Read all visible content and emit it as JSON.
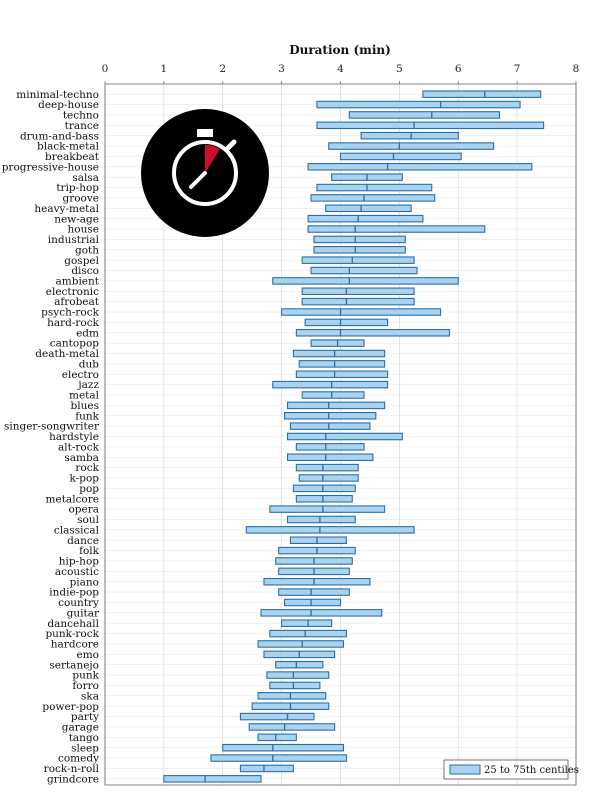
{
  "chart_data": {
    "type": "boxplot",
    "orientation": "horizontal",
    "xlabel": "Duration (min)",
    "xlim": [
      0,
      8
    ],
    "xticks": [
      0,
      1,
      2,
      3,
      4,
      5,
      6,
      7,
      8
    ],
    "grid": true,
    "legend": {
      "label": "25 to 75th centiles",
      "placement": "bottom-right"
    },
    "colors": {
      "fill": "#a9d3ee",
      "stroke": "#2a6fa8",
      "icon_bg": "#000000",
      "icon_accent": "#c8102e"
    },
    "icon": "stopwatch-icon",
    "rows": [
      {
        "genre": "minimal-techno",
        "q1": 5.4,
        "median": 6.45,
        "q3": 7.4
      },
      {
        "genre": "deep-house",
        "q1": 3.6,
        "median": 5.7,
        "q3": 7.05
      },
      {
        "genre": "techno",
        "q1": 4.15,
        "median": 5.55,
        "q3": 6.7
      },
      {
        "genre": "trance",
        "q1": 3.6,
        "median": 5.25,
        "q3": 7.45
      },
      {
        "genre": "drum-and-bass",
        "q1": 4.35,
        "median": 5.2,
        "q3": 6.0
      },
      {
        "genre": "black-metal",
        "q1": 3.8,
        "median": 5.0,
        "q3": 6.6
      },
      {
        "genre": "breakbeat",
        "q1": 4.0,
        "median": 4.9,
        "q3": 6.05
      },
      {
        "genre": "progressive-house",
        "q1": 3.45,
        "median": 4.8,
        "q3": 7.25
      },
      {
        "genre": "salsa",
        "q1": 3.85,
        "median": 4.45,
        "q3": 5.05
      },
      {
        "genre": "trip-hop",
        "q1": 3.6,
        "median": 4.45,
        "q3": 5.55
      },
      {
        "genre": "groove",
        "q1": 3.5,
        "median": 4.4,
        "q3": 5.6
      },
      {
        "genre": "heavy-metal",
        "q1": 3.75,
        "median": 4.35,
        "q3": 5.2
      },
      {
        "genre": "new-age",
        "q1": 3.45,
        "median": 4.3,
        "q3": 5.4
      },
      {
        "genre": "house",
        "q1": 3.45,
        "median": 4.25,
        "q3": 6.45
      },
      {
        "genre": "industrial",
        "q1": 3.55,
        "median": 4.25,
        "q3": 5.1
      },
      {
        "genre": "goth",
        "q1": 3.55,
        "median": 4.25,
        "q3": 5.1
      },
      {
        "genre": "gospel",
        "q1": 3.35,
        "median": 4.2,
        "q3": 5.25
      },
      {
        "genre": "disco",
        "q1": 3.5,
        "median": 4.15,
        "q3": 5.3
      },
      {
        "genre": "ambient",
        "q1": 2.85,
        "median": 4.15,
        "q3": 6.0
      },
      {
        "genre": "electronic",
        "q1": 3.35,
        "median": 4.1,
        "q3": 5.25
      },
      {
        "genre": "afrobeat",
        "q1": 3.35,
        "median": 4.1,
        "q3": 5.25
      },
      {
        "genre": "psych-rock",
        "q1": 3.0,
        "median": 4.0,
        "q3": 5.7
      },
      {
        "genre": "hard-rock",
        "q1": 3.4,
        "median": 4.0,
        "q3": 4.8
      },
      {
        "genre": "edm",
        "q1": 3.25,
        "median": 4.0,
        "q3": 5.85
      },
      {
        "genre": "cantopop",
        "q1": 3.5,
        "median": 3.95,
        "q3": 4.4
      },
      {
        "genre": "death-metal",
        "q1": 3.2,
        "median": 3.9,
        "q3": 4.75
      },
      {
        "genre": "dub",
        "q1": 3.3,
        "median": 3.9,
        "q3": 4.75
      },
      {
        "genre": "electro",
        "q1": 3.25,
        "median": 3.9,
        "q3": 4.8
      },
      {
        "genre": "jazz",
        "q1": 2.85,
        "median": 3.85,
        "q3": 4.8
      },
      {
        "genre": "metal",
        "q1": 3.35,
        "median": 3.85,
        "q3": 4.4
      },
      {
        "genre": "blues",
        "q1": 3.1,
        "median": 3.8,
        "q3": 4.75
      },
      {
        "genre": "funk",
        "q1": 3.05,
        "median": 3.8,
        "q3": 4.6
      },
      {
        "genre": "singer-songwriter",
        "q1": 3.15,
        "median": 3.8,
        "q3": 4.5
      },
      {
        "genre": "hardstyle",
        "q1": 3.1,
        "median": 3.75,
        "q3": 5.05
      },
      {
        "genre": "alt-rock",
        "q1": 3.25,
        "median": 3.75,
        "q3": 4.4
      },
      {
        "genre": "samba",
        "q1": 3.1,
        "median": 3.75,
        "q3": 4.55
      },
      {
        "genre": "rock",
        "q1": 3.25,
        "median": 3.7,
        "q3": 4.3
      },
      {
        "genre": "k-pop",
        "q1": 3.3,
        "median": 3.7,
        "q3": 4.3
      },
      {
        "genre": "pop",
        "q1": 3.2,
        "median": 3.7,
        "q3": 4.25
      },
      {
        "genre": "metalcore",
        "q1": 3.25,
        "median": 3.7,
        "q3": 4.2
      },
      {
        "genre": "opera",
        "q1": 2.8,
        "median": 3.7,
        "q3": 4.75
      },
      {
        "genre": "soul",
        "q1": 3.1,
        "median": 3.65,
        "q3": 4.25
      },
      {
        "genre": "classical",
        "q1": 2.4,
        "median": 3.65,
        "q3": 5.25
      },
      {
        "genre": "dance",
        "q1": 3.15,
        "median": 3.6,
        "q3": 4.1
      },
      {
        "genre": "folk",
        "q1": 2.95,
        "median": 3.6,
        "q3": 4.25
      },
      {
        "genre": "hip-hop",
        "q1": 2.9,
        "median": 3.55,
        "q3": 4.2
      },
      {
        "genre": "acoustic",
        "q1": 2.95,
        "median": 3.55,
        "q3": 4.15
      },
      {
        "genre": "piano",
        "q1": 2.7,
        "median": 3.55,
        "q3": 4.5
      },
      {
        "genre": "indie-pop",
        "q1": 2.95,
        "median": 3.5,
        "q3": 4.15
      },
      {
        "genre": "country",
        "q1": 3.05,
        "median": 3.5,
        "q3": 4.0
      },
      {
        "genre": "guitar",
        "q1": 2.65,
        "median": 3.5,
        "q3": 4.7
      },
      {
        "genre": "dancehall",
        "q1": 3.0,
        "median": 3.45,
        "q3": 3.85
      },
      {
        "genre": "punk-rock",
        "q1": 2.8,
        "median": 3.4,
        "q3": 4.1
      },
      {
        "genre": "hardcore",
        "q1": 2.6,
        "median": 3.35,
        "q3": 4.05
      },
      {
        "genre": "emo",
        "q1": 2.7,
        "median": 3.3,
        "q3": 3.9
      },
      {
        "genre": "sertanejo",
        "q1": 2.9,
        "median": 3.25,
        "q3": 3.7
      },
      {
        "genre": "punk",
        "q1": 2.75,
        "median": 3.2,
        "q3": 3.8
      },
      {
        "genre": "forro",
        "q1": 2.8,
        "median": 3.2,
        "q3": 3.65
      },
      {
        "genre": "ska",
        "q1": 2.6,
        "median": 3.15,
        "q3": 3.75
      },
      {
        "genre": "power-pop",
        "q1": 2.5,
        "median": 3.15,
        "q3": 3.8
      },
      {
        "genre": "party",
        "q1": 2.3,
        "median": 3.1,
        "q3": 3.55
      },
      {
        "genre": "garage",
        "q1": 2.45,
        "median": 3.05,
        "q3": 3.9
      },
      {
        "genre": "tango",
        "q1": 2.6,
        "median": 2.9,
        "q3": 3.25
      },
      {
        "genre": "sleep",
        "q1": 2.0,
        "median": 2.85,
        "q3": 4.05
      },
      {
        "genre": "comedy",
        "q1": 1.8,
        "median": 2.85,
        "q3": 4.1
      },
      {
        "genre": "rock-n-roll",
        "q1": 2.3,
        "median": 2.7,
        "q3": 3.2
      },
      {
        "genre": "grindcore",
        "q1": 1.0,
        "median": 1.7,
        "q3": 2.65
      }
    ]
  }
}
